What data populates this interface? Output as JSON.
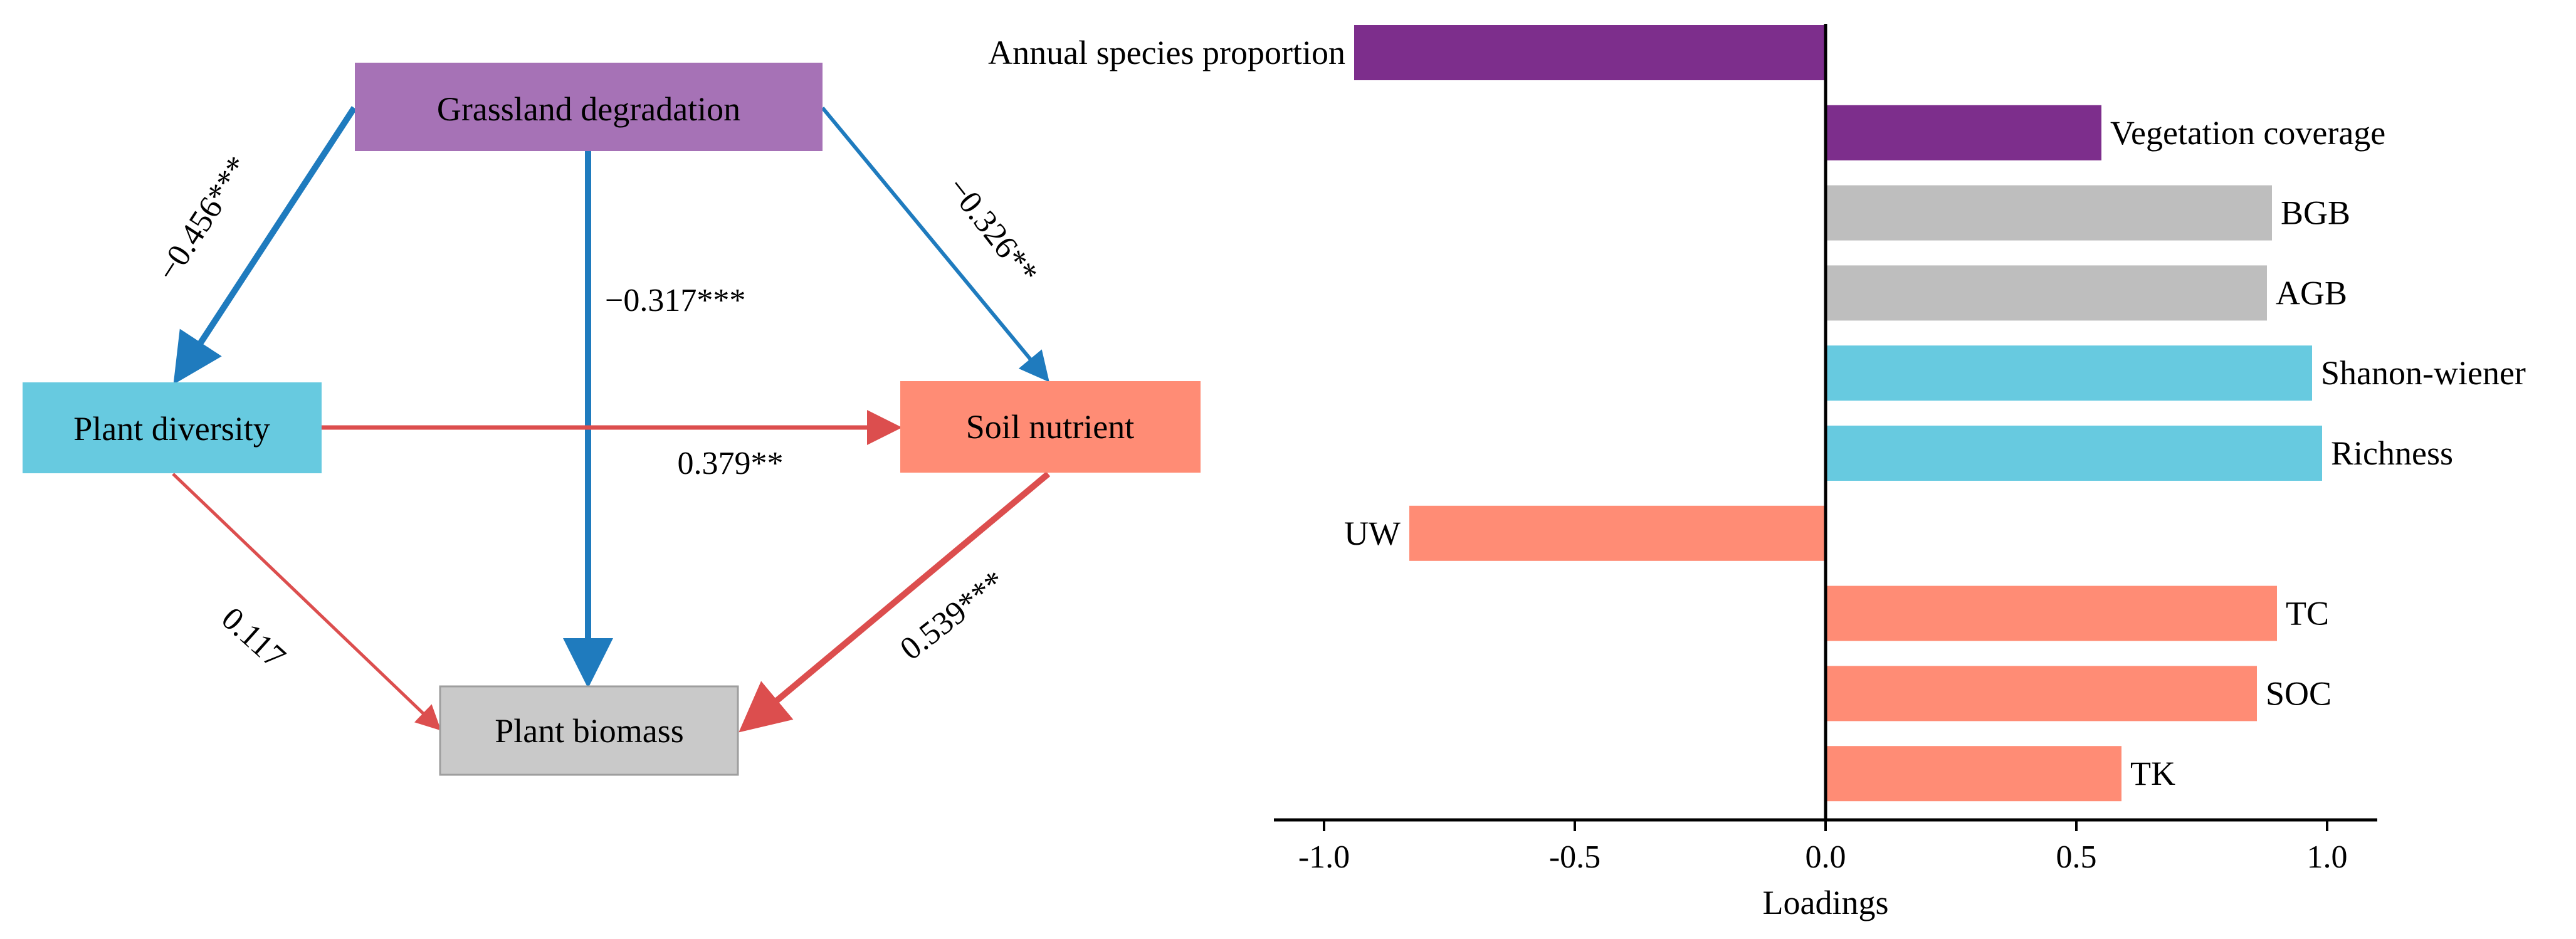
{
  "path_diagram": {
    "nodes": {
      "degradation": {
        "label": "Grassland degradation",
        "color": "#A672B6"
      },
      "diversity": {
        "label": "Plant diversity",
        "color": "#67CAE0"
      },
      "soil": {
        "label": "Soil nutrient",
        "color": "#FF8C75"
      },
      "biomass": {
        "label": "Plant biomass",
        "color": "#C9C9C9"
      }
    },
    "paths": {
      "deg_div": {
        "label": "−0.456***",
        "color": "#1F7BBE"
      },
      "deg_bio": {
        "label": "−0.317***",
        "color": "#1F7BBE"
      },
      "deg_soil": {
        "label": "−0.326**",
        "color": "#1F7BBE"
      },
      "div_soil": {
        "label": "0.379**",
        "color": "#DC4E4E"
      },
      "div_bio": {
        "label": "0.117",
        "color": "#DC4E4E"
      },
      "soil_bio": {
        "label": "0.539***",
        "color": "#DC4E4E"
      }
    }
  },
  "chart_data": {
    "type": "bar",
    "orientation": "horizontal",
    "xlabel": "Loadings",
    "xlim": [
      -1.1,
      1.1
    ],
    "xticks": [
      -1.0,
      -0.5,
      0.0,
      0.5,
      1.0
    ],
    "xtick_labels": [
      "-1.0",
      "-0.5",
      "0.0",
      "0.5",
      "1.0"
    ],
    "categories": [
      "Annual species proportion",
      "Vegetation coverage",
      "BGB",
      "AGB",
      "Shanon-wiener",
      "Richness",
      "UW",
      "TC",
      "SOC",
      "TK"
    ],
    "values": [
      -0.94,
      0.55,
      0.89,
      0.88,
      0.97,
      0.99,
      -0.83,
      0.9,
      0.86,
      0.59
    ],
    "colors": [
      "#7D2E8C",
      "#7D2E8C",
      "#BEBEBE",
      "#BEBEBE",
      "#67CAE0",
      "#67CAE0",
      "#FF8C75",
      "#FF8C75",
      "#FF8C75",
      "#FF8C75"
    ]
  }
}
